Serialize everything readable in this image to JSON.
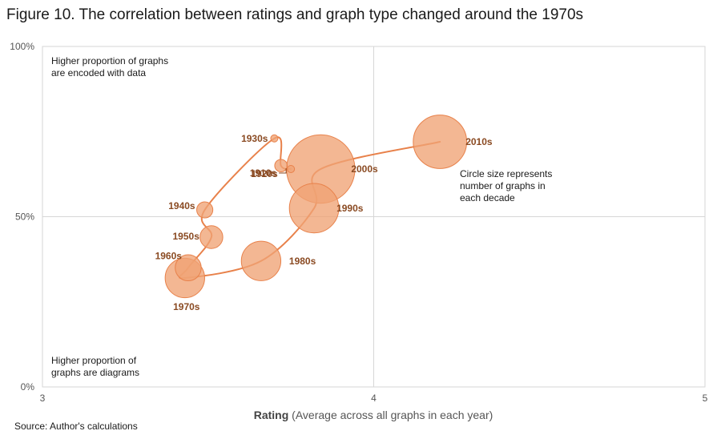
{
  "title": "Figure 10. The correlation between ratings and graph type changed around the 1970s",
  "source": "Source: Author's calculations",
  "chart_data": {
    "type": "scatter",
    "subtype": "connected-bubble",
    "title": "Figure 10. The correlation between ratings and graph type changed around the 1970s",
    "xlabel_bold": "Rating",
    "xlabel_rest": " (Average across all graphs in each year)",
    "ylabel": "",
    "xlim": [
      3,
      5
    ],
    "ylim": [
      0,
      100
    ],
    "x_ticks": [
      {
        "value": 3,
        "label": "3"
      },
      {
        "value": 4,
        "label": "4"
      },
      {
        "value": 5,
        "label": "5"
      }
    ],
    "y_ticks": [
      {
        "value": 0,
        "label": "0%"
      },
      {
        "value": 50,
        "label": "50%"
      },
      {
        "value": 100,
        "label": "100%"
      }
    ],
    "grid": "midlines at x=4 and y=50%",
    "bubble_color": "#f0a374",
    "line_color": "#e8814a",
    "label_color": "#8a4a22",
    "points": [
      {
        "label": "1910s",
        "x": 3.75,
        "y": 64,
        "size": 1
      },
      {
        "label": "1920s",
        "x": 3.72,
        "y": 65,
        "size": 3
      },
      {
        "label": "1930s",
        "x": 3.7,
        "y": 73,
        "size": 1
      },
      {
        "label": "1940s",
        "x": 3.49,
        "y": 52,
        "size": 5
      },
      {
        "label": "1950s",
        "x": 3.51,
        "y": 44,
        "size": 10
      },
      {
        "label": "1960s",
        "x": 3.44,
        "y": 35,
        "size": 13
      },
      {
        "label": "1970s",
        "x": 3.43,
        "y": 32,
        "size": 30
      },
      {
        "label": "1980s",
        "x": 3.66,
        "y": 37,
        "size": 30
      },
      {
        "label": "1990s",
        "x": 3.82,
        "y": 52.5,
        "size": 47
      },
      {
        "label": "2000s",
        "x": 3.84,
        "y": 64,
        "size": 90
      },
      {
        "label": "2010s",
        "x": 4.2,
        "y": 72,
        "size": 55
      }
    ],
    "annotations": [
      {
        "text_lines": [
          "Higher proportion of graphs",
          "are encoded with data"
        ],
        "position": "top-left"
      },
      {
        "text_lines": [
          "Higher proportion of",
          "graphs are diagrams"
        ],
        "position": "bottom-left"
      },
      {
        "text_lines": [
          "Circle size represents",
          "number of graphs in",
          "each decade"
        ],
        "position": "right"
      }
    ]
  }
}
